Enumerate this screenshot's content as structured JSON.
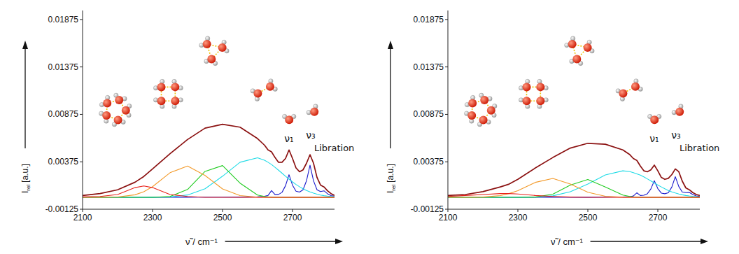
{
  "chart_data": [
    {
      "type": "line",
      "xlabel": "ν̃ / cm⁻¹",
      "ylabel": {
        "text": "I",
        "sub": "rel",
        "unit": "[a.u.]"
      },
      "xlim": [
        2100,
        2820
      ],
      "ylim": [
        -0.00125,
        0.0197
      ],
      "xticks": [
        2100,
        2300,
        2500,
        2700
      ],
      "yticks": [
        -0.00125,
        0.00375,
        0.00875,
        0.01375,
        0.01875
      ],
      "x": [
        2100,
        2150,
        2200,
        2250,
        2275,
        2300,
        2350,
        2400,
        2450,
        2500,
        2550,
        2600,
        2620,
        2630,
        2640,
        2650,
        2660,
        2670,
        2680,
        2690,
        2700,
        2710,
        2720,
        2730,
        2740,
        2750,
        2760,
        2770,
        2780,
        2790,
        2800,
        2810,
        2820
      ],
      "series": [
        {
          "color": "#8b1111",
          "values": [
            0.0002,
            0.0004,
            0.0008,
            0.0016,
            0.0022,
            0.003,
            0.0046,
            0.0061,
            0.0073,
            0.0077,
            0.0074,
            0.0062,
            0.0055,
            0.005,
            0.0048,
            0.0042,
            0.0037,
            0.0037,
            0.0041,
            0.005,
            0.0041,
            0.0031,
            0.0027,
            0.0029,
            0.0036,
            0.0045,
            0.0036,
            0.0021,
            0.0013,
            0.0011,
            0.0007,
            0.0004,
            0.0002
          ]
        },
        {
          "color": "#e8201a",
          "values": [
            5e-05,
            0.0001,
            0.0003,
            0.00103,
            0.0012,
            0.00103,
            0.0003,
            0.0001,
            0,
            0,
            0,
            0,
            0,
            0,
            0,
            0,
            0,
            0,
            0,
            0,
            0,
            0,
            0,
            0,
            0,
            0,
            0,
            0,
            0,
            0,
            0,
            0,
            0
          ]
        },
        {
          "color": "#f39a2a",
          "values": [
            0,
            0,
            4e-05,
            0.00027,
            0.0006,
            0.00113,
            0.0026,
            0.0033,
            0.00231,
            0.00089,
            0.00019,
            2e-05,
            0,
            0,
            0,
            0,
            0,
            0,
            0,
            0,
            0,
            0,
            0,
            0,
            0,
            0,
            0,
            0,
            0,
            0,
            0,
            0,
            0
          ]
        },
        {
          "color": "#22cc22",
          "values": [
            0,
            0,
            0,
            0,
            0,
            0,
            9e-05,
            0.00083,
            0.00274,
            0.00335,
            0.0015,
            0.00025,
            9e-05,
            5e-05,
            3e-05,
            0,
            0,
            0,
            0,
            0,
            0,
            0,
            0,
            0,
            0,
            0,
            0,
            0,
            0,
            0,
            0,
            0,
            0
          ]
        },
        {
          "color": "#1fdbe6",
          "values": [
            0,
            0,
            0,
            0,
            0,
            1e-05,
            5e-05,
            0.00025,
            0.00091,
            0.00223,
            0.0037,
            0.00417,
            0.00392,
            0.0037,
            0.00346,
            0.00317,
            0.00286,
            0.00255,
            0.00223,
            0.00192,
            0.00163,
            0.00136,
            0.00112,
            0.00091,
            0.00072,
            0.00057,
            0.00044,
            0.00034,
            0.00025,
            0.00018,
            0.00013,
            0.0001,
            7e-05
          ]
        },
        {
          "color": "#1a1acc",
          "values": [
            0,
            0,
            0,
            0,
            0,
            1e-05,
            1e-05,
            1e-05,
            2e-05,
            2e-05,
            3e-05,
            5e-05,
            0.00011,
            0.0002,
            0.00071,
            0.00029,
            0.00031,
            0.00053,
            0.00123,
            0.00239,
            0.00128,
            0.00065,
            0.00056,
            0.0008,
            0.00176,
            0.00339,
            0.00175,
            0.0008,
            0.00061,
            0.00069,
            0.00038,
            0.00019,
            0.00012
          ]
        }
      ],
      "annotations": [
        {
          "text": "ν₁",
          "x": 2690,
          "y": 0.0058
        },
        {
          "text": "ν₃",
          "x": 2752,
          "y": 0.0062
        },
        {
          "text": "Libration",
          "x": 2762,
          "y": 0.0049
        }
      ]
    },
    {
      "type": "line",
      "xlabel": "ν̃ / cm⁻¹",
      "ylabel": {
        "text": "I",
        "sub": "rel",
        "unit": "[a.u.]"
      },
      "xlim": [
        2100,
        2820
      ],
      "ylim": [
        -0.00125,
        0.0197
      ],
      "xticks": [
        2100,
        2300,
        2500,
        2700
      ],
      "yticks": [
        -0.00125,
        0.00375,
        0.00875,
        0.01375,
        0.01875
      ],
      "x": [
        2100,
        2150,
        2200,
        2250,
        2275,
        2300,
        2350,
        2400,
        2450,
        2500,
        2550,
        2600,
        2620,
        2630,
        2640,
        2650,
        2660,
        2670,
        2680,
        2690,
        2700,
        2710,
        2720,
        2730,
        2740,
        2750,
        2760,
        2770,
        2780,
        2790,
        2800,
        2810,
        2820
      ],
      "series": [
        {
          "color": "#8b1111",
          "values": [
            0.0002,
            0.0003,
            0.0006,
            0.0011,
            0.0014,
            0.0019,
            0.0031,
            0.0042,
            0.0052,
            0.0057,
            0.0056,
            0.005,
            0.0045,
            0.0041,
            0.0039,
            0.0033,
            0.0028,
            0.0027,
            0.0029,
            0.0034,
            0.0028,
            0.0021,
            0.0019,
            0.002,
            0.0024,
            0.003,
            0.0027,
            0.0017,
            0.001,
            0.0008,
            0.0005,
            0.0003,
            0.0002
          ]
        },
        {
          "color": "#e8201a",
          "values": [
            0.0001,
            0.0002,
            0.0003,
            0.0004,
            0.0004,
            0.00035,
            0.0002,
            0.0001,
            3e-05,
            0,
            0,
            0,
            0,
            0,
            0,
            0,
            0,
            0,
            0,
            0,
            0,
            0,
            0,
            0,
            0,
            0,
            0,
            0,
            0,
            0,
            0,
            0,
            0
          ]
        },
        {
          "color": "#f39a2a",
          "values": [
            0,
            0,
            3e-05,
            0.00019,
            0.0004,
            0.0007,
            0.00158,
            0.002,
            0.0014,
            0.00054,
            0.00012,
            1e-05,
            0,
            0,
            0,
            0,
            0,
            0,
            0,
            0,
            0,
            0,
            0,
            0,
            0,
            0,
            0,
            0,
            0,
            0,
            0,
            0,
            0
          ]
        },
        {
          "color": "#22cc22",
          "values": [
            0,
            0,
            0,
            0,
            0,
            0,
            3e-05,
            0.00033,
            0.0013,
            0.00188,
            0.0011,
            0.00025,
            0.0001,
            6e-05,
            3e-05,
            0,
            0,
            0,
            0,
            0,
            0,
            0,
            0,
            0,
            0,
            0,
            0,
            0,
            0,
            0,
            0,
            0,
            0
          ]
        },
        {
          "color": "#1fdbe6",
          "values": [
            0,
            0,
            0,
            0,
            0,
            0,
            3e-05,
            0.00016,
            0.00059,
            0.0014,
            0.00236,
            0.0028,
            0.00271,
            0.0026,
            0.00248,
            0.00235,
            0.00216,
            0.00195,
            0.00174,
            0.00152,
            0.0013,
            0.0011,
            0.0009,
            0.00073,
            0.00058,
            0.00046,
            0.00036,
            0.00027,
            0.0002,
            0.00015,
            0.00011,
            8e-05,
            5e-05
          ]
        },
        {
          "color": "#1a1acc",
          "values": [
            0,
            0,
            0,
            0,
            0,
            0,
            1e-05,
            1e-05,
            1e-05,
            1e-05,
            2e-05,
            4e-05,
            8e-05,
            0.00014,
            0.00048,
            0.0002,
            0.00022,
            0.00038,
            0.00088,
            0.00176,
            0.00092,
            0.00045,
            0.00038,
            0.00048,
            0.00108,
            0.00218,
            0.00114,
            0.00056,
            0.0005,
            0.00052,
            0.0003,
            0.00015,
            9e-05
          ]
        }
      ],
      "annotations": [
        {
          "text": "ν₁",
          "x": 2690,
          "y": 0.0058
        },
        {
          "text": "ν₃",
          "x": 2752,
          "y": 0.0062
        },
        {
          "text": "Libration",
          "x": 2762,
          "y": 0.0049
        }
      ]
    }
  ]
}
